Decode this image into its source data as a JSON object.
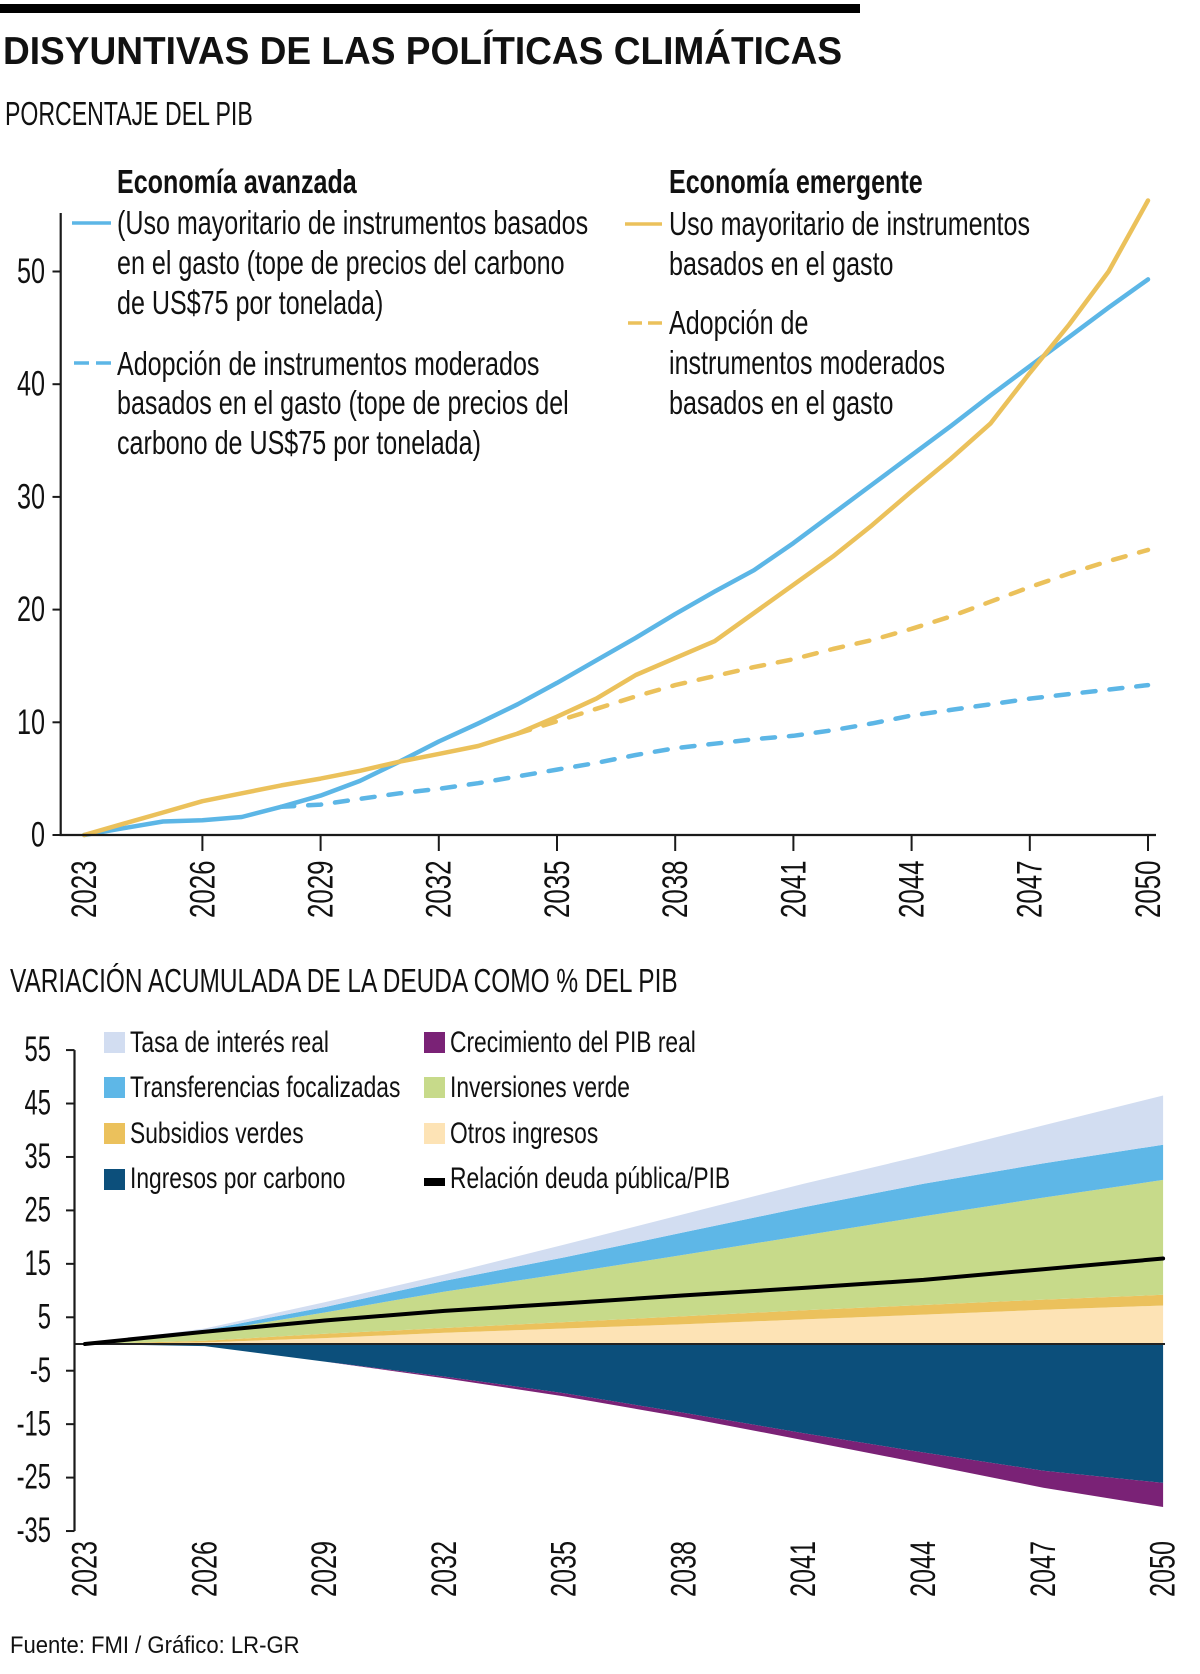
{
  "header": {
    "title": "DISYUNTIVAS DE LAS POLÍTICAS CLIMÁTICAS",
    "subtitle": "PORCENTAJE DEL PIB"
  },
  "chart_data": [
    {
      "type": "line",
      "title": "PORCENTAJE DEL PIB",
      "xlabel": "",
      "ylabel": "PORCENTAJE DEL PIB",
      "xlim": [
        2023,
        2050
      ],
      "ylim": [
        0,
        55
      ],
      "grid": false,
      "legend_placement": "top-left",
      "x_ticks": [
        "2023",
        "2026",
        "2029",
        "2032",
        "2035",
        "2038",
        "2041",
        "2044",
        "2047",
        "2050"
      ],
      "y_ticks": [
        "0",
        "10",
        "20",
        "30",
        "40",
        "50"
      ],
      "legend": [
        {
          "heading": "Economía avanzada",
          "entries": [
            {
              "series": 0,
              "lines": [
                "(Uso mayoritario de instrumentos basados",
                "en el gasto (tope de precios del carbono",
                "de US$75 por tonelada)"
              ]
            },
            {
              "series": 1,
              "lines": [
                "Adopción de instrumentos moderados",
                "basados en el gasto (tope de precios del",
                "carbono de US$75 por tonelada)"
              ]
            }
          ]
        },
        {
          "heading": "Economía emergente",
          "entries": [
            {
              "series": 2,
              "lines": [
                "Uso mayoritario de instrumentos",
                "basados en el gasto"
              ]
            },
            {
              "series": 3,
              "lines": [
                "Adopción de",
                "instrumentos moderados",
                "basados en el gasto"
              ]
            }
          ]
        }
      ],
      "series": [
        {
          "name": "Uso mayoritario de instrumentos basados en el gasto (tope de precios del carbono de US$75 por tonelada)",
          "group": "Economía avanzada",
          "line_style": "solid",
          "color": "#5cb6e6",
          "x": [
            2023,
            2024,
            2025,
            2026,
            2027,
            2028,
            2029,
            2030,
            2031,
            2032,
            2033,
            2034,
            2035,
            2036,
            2037,
            2038,
            2039,
            2040,
            2041,
            2042,
            2043,
            2044,
            2045,
            2046,
            2047,
            2048,
            2049,
            2050
          ],
          "values": [
            0,
            0.6,
            1.2,
            1.3,
            1.6,
            2.5,
            3.5,
            4.8,
            6.5,
            8.3,
            9.9,
            11.6,
            13.5,
            15.5,
            17.5,
            19.6,
            21.6,
            23.5,
            25.9,
            28.5,
            31.1,
            33.7,
            36.3,
            39.0,
            41.6,
            44.2,
            46.8,
            49.3
          ]
        },
        {
          "name": "Adopción de instrumentos moderados basados en el gasto (tope de precios del carbono de US$75 por tonelada)",
          "group": "Economía avanzada",
          "line_style": "dashed",
          "color": "#5cb6e6",
          "x": [
            2028,
            2029,
            2030,
            2031,
            2032,
            2033,
            2034,
            2035,
            2036,
            2037,
            2038,
            2039,
            2040,
            2041,
            2042,
            2043,
            2044,
            2045,
            2046,
            2047,
            2048,
            2049,
            2050
          ],
          "values": [
            2.5,
            2.7,
            3.2,
            3.7,
            4.1,
            4.6,
            5.2,
            5.8,
            6.4,
            7.1,
            7.7,
            8.1,
            8.5,
            8.8,
            9.3,
            9.9,
            10.6,
            11.1,
            11.6,
            12.1,
            12.5,
            12.9,
            13.3
          ]
        },
        {
          "name": "Uso mayoritario de instrumentos basados en el gasto",
          "group": "Economía emergente",
          "line_style": "solid",
          "color": "#ebc15b",
          "x": [
            2023,
            2024,
            2025,
            2026,
            2027,
            2028,
            2029,
            2030,
            2031,
            2032,
            2033,
            2034,
            2035,
            2036,
            2037,
            2038,
            2039,
            2040,
            2041,
            2042,
            2043,
            2044,
            2045,
            2046,
            2047,
            2048,
            2049,
            2050
          ],
          "values": [
            0,
            1.0,
            2.0,
            3.0,
            3.7,
            4.4,
            5.0,
            5.7,
            6.5,
            7.2,
            7.9,
            9.0,
            10.5,
            12.1,
            14.2,
            15.7,
            17.2,
            19.7,
            22.2,
            24.7,
            27.5,
            30.5,
            33.4,
            36.5,
            41.0,
            45.3,
            50.0,
            56.3
          ]
        },
        {
          "name": "Adopción de instrumentos moderados basados en el gasto",
          "group": "Economía emergente",
          "line_style": "dashed",
          "color": "#ebc15b",
          "x": [
            2034,
            2035,
            2036,
            2037,
            2038,
            2039,
            2040,
            2041,
            2042,
            2043,
            2044,
            2045,
            2046,
            2047,
            2048,
            2049,
            2050
          ],
          "values": [
            9.0,
            10.1,
            11.2,
            12.3,
            13.3,
            14.1,
            14.9,
            15.6,
            16.5,
            17.3,
            18.3,
            19.4,
            20.7,
            22.0,
            23.2,
            24.3,
            25.3
          ]
        }
      ]
    },
    {
      "type": "area",
      "stacked": true,
      "title": "VARIACIÓN ACUMULADA DE LA DEUDA COMO % DEL PIB",
      "xlabel": "",
      "ylabel": "% del PIB",
      "xlim": [
        2023,
        2050
      ],
      "ylim": [
        -35,
        55
      ],
      "grid": false,
      "legend_placement": "top-left",
      "x_ticks": [
        "2023",
        "2026",
        "2029",
        "2032",
        "2035",
        "2038",
        "2041",
        "2044",
        "2047",
        "2050"
      ],
      "y_ticks": [
        "55",
        "45",
        "35",
        "25",
        "15",
        "5",
        "-5",
        "-15",
        "-25",
        "-35"
      ],
      "x": [
        2023,
        2026,
        2029,
        2032,
        2035,
        2038,
        2041,
        2044,
        2047,
        2050
      ],
      "series": [
        {
          "name": "Otros ingresos",
          "side": "positive",
          "color": "#fde3b5",
          "values": [
            0,
            0.3,
            1.1,
            2.1,
            2.9,
            3.7,
            4.6,
            5.5,
            6.4,
            7.2
          ]
        },
        {
          "name": "Subsidios verdes",
          "side": "positive",
          "color": "#ebc15c",
          "values": [
            0,
            0.3,
            0.8,
            0.9,
            1.2,
            1.5,
            1.7,
            1.8,
            1.9,
            2.0
          ]
        },
        {
          "name": "Inversiones verde",
          "side": "positive",
          "color": "#c7da8a",
          "values": [
            0,
            1.6,
            4.0,
            6.8,
            9.1,
            11.5,
            14.0,
            16.6,
            19.1,
            21.5
          ]
        },
        {
          "name": "Transferencias focalizadas",
          "side": "positive",
          "color": "#5eb7e7",
          "values": [
            0,
            0.4,
            1.0,
            2.0,
            3.0,
            4.2,
            5.3,
            6.1,
            6.4,
            6.6
          ]
        },
        {
          "name": "Tasa de interés real",
          "side": "positive",
          "color": "#d2ddf1",
          "values": [
            0,
            0.3,
            0.9,
            1.2,
            2.4,
            3.4,
            4.4,
            5.3,
            7.1,
            9.2
          ]
        },
        {
          "name": "Ingresos por carbono",
          "side": "negative",
          "color": "#0c4f7b",
          "values": [
            0,
            -0.4,
            -3.3,
            -6.1,
            -9.2,
            -12.9,
            -16.7,
            -20.3,
            -23.7,
            -26.0
          ]
        },
        {
          "name": "Crecimiento del PIB real",
          "side": "negative",
          "color": "#7a2276",
          "values": [
            0,
            0,
            0,
            -0.3,
            -0.6,
            -0.8,
            -1.3,
            -2.1,
            -3.2,
            -4.5
          ]
        }
      ],
      "line_series": [
        {
          "name": "Relación deuda pública/PIB",
          "color": "#000000",
          "values": [
            0,
            2.3,
            4.4,
            6.2,
            7.6,
            9.1,
            10.5,
            12.0,
            14.0,
            16.0
          ]
        }
      ]
    }
  ],
  "footer": {
    "source": "Fuente: FMI / Gráfico: LR-GR"
  }
}
